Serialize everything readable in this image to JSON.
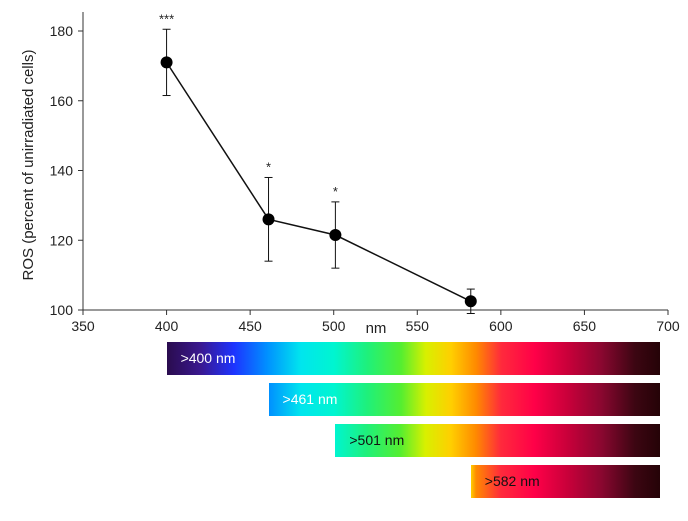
{
  "chart_data": {
    "type": "line",
    "title": "",
    "xlabel": "nm",
    "ylabel": "ROS (percent of unirradiated cells)",
    "xlim": [
      350,
      700
    ],
    "ylim": [
      100,
      185
    ],
    "x_ticks": [
      350,
      400,
      450,
      500,
      550,
      600,
      650,
      700
    ],
    "y_ticks": [
      100,
      120,
      140,
      160,
      180
    ],
    "grid": false,
    "series": [
      {
        "x": [
          400,
          461,
          501,
          582
        ],
        "y": [
          171,
          126,
          121.5,
          102.5
        ],
        "error": [
          9.5,
          12,
          9.5,
          3.5
        ],
        "significance": [
          "***",
          "*",
          "*",
          ""
        ]
      }
    ],
    "filters": [
      {
        "label": ">400 nm",
        "cutoff": 400
      },
      {
        "label": ">461 nm",
        "cutoff": 461
      },
      {
        "label": ">501 nm",
        "cutoff": 501
      },
      {
        "label": ">582 nm",
        "cutoff": 582
      }
    ],
    "filter_end": 695
  }
}
